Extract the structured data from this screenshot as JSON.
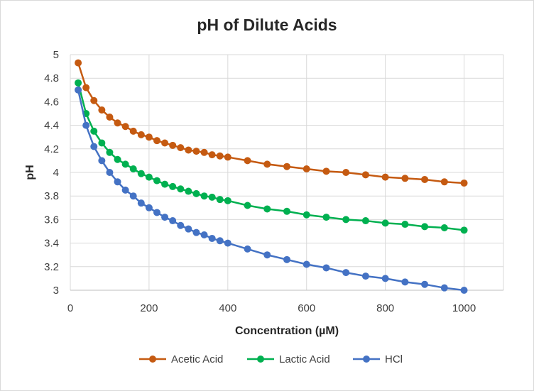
{
  "chart_data": {
    "type": "line",
    "title": "pH of Dilute Acids",
    "xlabel": "Concentration (µM)",
    "ylabel": "pH",
    "xlim": [
      0,
      1100
    ],
    "ylim": [
      3,
      5
    ],
    "x_ticks": [
      "0",
      "200",
      "400",
      "600",
      "800",
      "1000"
    ],
    "y_ticks": [
      "3",
      "3.2",
      "3.4",
      "3.6",
      "3.8",
      "4",
      "4.2",
      "4.4",
      "4.6",
      "4.8",
      "5"
    ],
    "grid": true,
    "legend_position": "bottom",
    "x": [
      20,
      40,
      60,
      80,
      100,
      120,
      140,
      160,
      180,
      200,
      220,
      240,
      260,
      280,
      300,
      320,
      340,
      360,
      380,
      400,
      450,
      500,
      550,
      600,
      650,
      700,
      750,
      800,
      850,
      900,
      950,
      1000
    ],
    "series": [
      {
        "name": "Acetic Acid",
        "color": "#c55a11",
        "values": [
          4.93,
          4.72,
          4.61,
          4.53,
          4.47,
          4.42,
          4.39,
          4.35,
          4.32,
          4.3,
          4.27,
          4.25,
          4.23,
          4.21,
          4.19,
          4.18,
          4.17,
          4.15,
          4.14,
          4.13,
          4.1,
          4.07,
          4.05,
          4.03,
          4.01,
          4.0,
          3.98,
          3.96,
          3.95,
          3.94,
          3.92,
          3.91
        ]
      },
      {
        "name": "Lactic Acid",
        "color": "#00b050",
        "values": [
          4.76,
          4.5,
          4.35,
          4.25,
          4.17,
          4.11,
          4.07,
          4.03,
          3.99,
          3.96,
          3.93,
          3.9,
          3.88,
          3.86,
          3.84,
          3.82,
          3.8,
          3.79,
          3.77,
          3.76,
          3.72,
          3.69,
          3.67,
          3.64,
          3.62,
          3.6,
          3.59,
          3.57,
          3.56,
          3.54,
          3.53,
          3.51
        ]
      },
      {
        "name": "HCl",
        "color": "#4472c4",
        "values": [
          4.7,
          4.4,
          4.22,
          4.1,
          4.0,
          3.92,
          3.85,
          3.8,
          3.74,
          3.7,
          3.66,
          3.62,
          3.59,
          3.55,
          3.52,
          3.49,
          3.47,
          3.44,
          3.42,
          3.4,
          3.35,
          3.3,
          3.26,
          3.22,
          3.19,
          3.15,
          3.12,
          3.1,
          3.07,
          3.05,
          3.02,
          3.0
        ]
      }
    ]
  }
}
